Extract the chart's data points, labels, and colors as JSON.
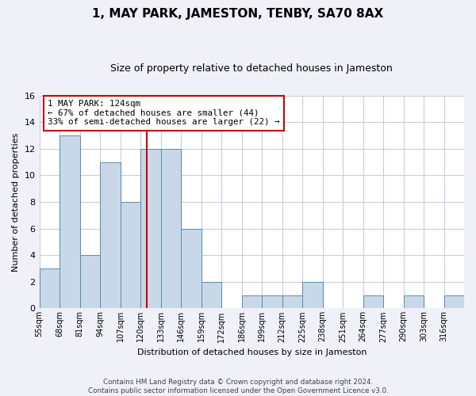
{
  "title": "1, MAY PARK, JAMESTON, TENBY, SA70 8AX",
  "subtitle": "Size of property relative to detached houses in Jameston",
  "xlabel": "Distribution of detached houses by size in Jameston",
  "ylabel": "Number of detached properties",
  "bin_labels": [
    "55sqm",
    "68sqm",
    "81sqm",
    "94sqm",
    "107sqm",
    "120sqm",
    "133sqm",
    "146sqm",
    "159sqm",
    "172sqm",
    "186sqm",
    "199sqm",
    "212sqm",
    "225sqm",
    "238sqm",
    "251sqm",
    "264sqm",
    "277sqm",
    "290sqm",
    "303sqm",
    "316sqm"
  ],
  "counts": [
    3,
    13,
    4,
    11,
    8,
    12,
    12,
    6,
    2,
    0,
    1,
    1,
    1,
    2,
    0,
    0,
    1,
    0,
    1,
    0,
    1
  ],
  "bar_color": "#c8d8e8",
  "bar_edge_color": "#5a8ab0",
  "marker_bin_index": 5,
  "marker_line_color": "#cc0000",
  "annotation_line1": "1 MAY PARK: 124sqm",
  "annotation_line2": "← 67% of detached houses are smaller (44)",
  "annotation_line3": "33% of semi-detached houses are larger (22) →",
  "annotation_box_color": "#ffffff",
  "annotation_box_edge": "#cc0000",
  "ylim": [
    0,
    16
  ],
  "yticks": [
    0,
    2,
    4,
    6,
    8,
    10,
    12,
    14,
    16
  ],
  "footer_line1": "Contains HM Land Registry data © Crown copyright and database right 2024.",
  "footer_line2": "Contains public sector information licensed under the Open Government Licence v3.0.",
  "bg_color": "#f0f0f8",
  "plot_bg_color": "#ffffff",
  "grid_color": "#c8cce0",
  "title_fontsize": 11,
  "subtitle_fontsize": 9,
  "ylabel_fontsize": 8,
  "xlabel_fontsize": 8
}
